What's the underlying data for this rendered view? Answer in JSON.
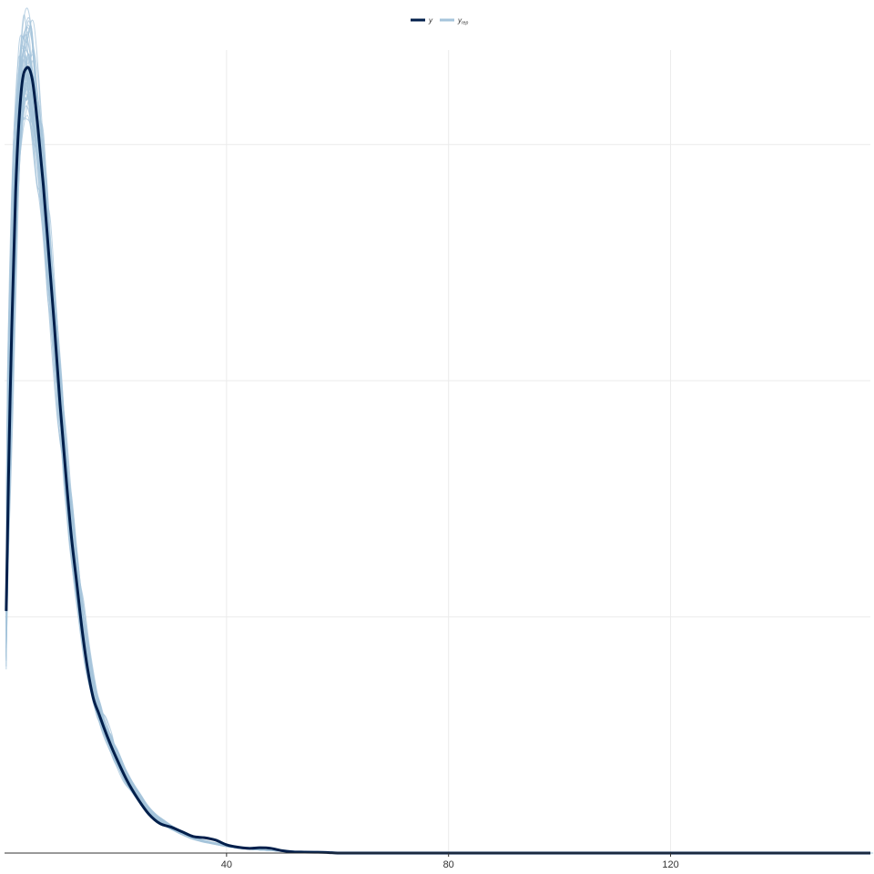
{
  "chart_data": {
    "type": "line",
    "title": "",
    "xlabel": "",
    "ylabel": "",
    "xlim": [
      0,
      156
    ],
    "ylim": [
      0,
      0.068
    ],
    "x_ticks": [
      40,
      80,
      120
    ],
    "x_tick_labels": [
      "40",
      "80",
      "120"
    ],
    "y_grid": [
      0.02,
      0.04,
      0.06
    ],
    "grid": true,
    "legend": {
      "placement": "top",
      "entries": [
        {
          "label": "y",
          "subscript": "",
          "color": "#011f4b"
        },
        {
          "label": "y",
          "subscript": "rep",
          "color": "#a6c4db"
        }
      ]
    },
    "series": [
      {
        "name": "y",
        "color": "#011f4b",
        "x": [
          0.3,
          1,
          2,
          3,
          4,
          5,
          6,
          7,
          8,
          9,
          10,
          11,
          12,
          13,
          14,
          15,
          16,
          17,
          18,
          19,
          20,
          22,
          24,
          26,
          28,
          30,
          32,
          34,
          36,
          38,
          40,
          42,
          44,
          46,
          48,
          50,
          52,
          54,
          56,
          58,
          60,
          62,
          64,
          70,
          80,
          100,
          130,
          156
        ],
        "y": [
          0.0205,
          0.0385,
          0.056,
          0.0645,
          0.0665,
          0.0655,
          0.0615,
          0.0565,
          0.0505,
          0.0445,
          0.038,
          0.0323,
          0.027,
          0.0229,
          0.0188,
          0.0155,
          0.0131,
          0.0118,
          0.0105,
          0.0093,
          0.0082,
          0.0062,
          0.0046,
          0.0033,
          0.0025,
          0.0022,
          0.0018,
          0.0014,
          0.0013,
          0.0011,
          0.0007,
          0.0005,
          0.0004,
          0.00045,
          0.0004,
          0.0002,
          0.0001,
          8e-05,
          7e-05,
          5e-05,
          0.0,
          0.0,
          0.0,
          0.0,
          0.0,
          0.0,
          0.0,
          0.0
        ]
      }
    ],
    "replicates": {
      "name": "y_rep",
      "color": "#a6c4db",
      "count": 50,
      "x": [
        0.3,
        1,
        2,
        3,
        4,
        5,
        6,
        7,
        8,
        9,
        10,
        11,
        12,
        13,
        14,
        15,
        16,
        17,
        18,
        19,
        20,
        22,
        24,
        26,
        28,
        30,
        32,
        34,
        36,
        38,
        40,
        42,
        44,
        46,
        48,
        50,
        52,
        54,
        56,
        58,
        60,
        62,
        64,
        70,
        80,
        100,
        130,
        156
      ],
      "y": [
        0.018,
        0.0375,
        0.0555,
        0.064,
        0.0664,
        0.0652,
        0.0612,
        0.0565,
        0.0507,
        0.0448,
        0.0386,
        0.0331,
        0.0279,
        0.0236,
        0.0198,
        0.0164,
        0.014,
        0.0122,
        0.0108,
        0.0095,
        0.0084,
        0.0064,
        0.0049,
        0.0036,
        0.0028,
        0.0022,
        0.0017,
        0.0013,
        0.001,
        0.0008,
        0.0006,
        0.00045,
        0.00035,
        0.00028,
        0.00022,
        0.00018,
        0.00015,
        0.00012,
        0.0001,
        8e-05,
        6e-05,
        5e-05,
        4e-05,
        2e-05,
        1e-05,
        0.0,
        0.0,
        0.0
      ]
    }
  }
}
